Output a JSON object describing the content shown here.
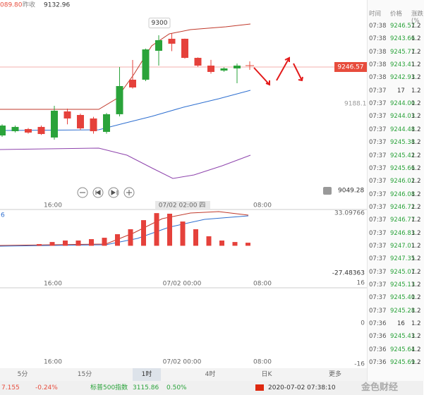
{
  "header": {
    "last_partial": "089.80",
    "prev_close_label": "昨收",
    "prev_close": "9132.96"
  },
  "chart": {
    "high_label": 9300,
    "last_price": 9246.57,
    "mid_price": 9188.19,
    "alert_price": 9049.28,
    "candles": [
      {
        "open": 9137.2,
        "high": 9155,
        "low": 9135,
        "close": 9153.0
      },
      {
        "open": 9144.0,
        "high": 9153,
        "low": 9142,
        "close": 9150.8
      },
      {
        "open": 9147.4,
        "high": 9149,
        "low": 9140,
        "close": 9141.8
      },
      {
        "open": 9150.8,
        "high": 9153,
        "low": 9138,
        "close": 9139.5
      },
      {
        "open": 9133.9,
        "high": 9184.6,
        "low": 9130.5,
        "close": 9176.7
      },
      {
        "open": 9175.6,
        "high": 9180,
        "low": 9155,
        "close": 9164.3
      },
      {
        "open": 9169.9,
        "high": 9172,
        "low": 9146,
        "close": 9148.5
      },
      {
        "open": 9164.3,
        "high": 9167,
        "low": 9140,
        "close": 9144.0
      },
      {
        "open": 9142.9,
        "high": 9173,
        "low": 9140,
        "close": 9171.1
      },
      {
        "open": 9171.1,
        "high": 9246.6,
        "low": 9167.7,
        "close": 9216.1
      },
      {
        "open": 9226.3,
        "high": 9257.8,
        "low": 9212,
        "close": 9213.9
      },
      {
        "open": 9226.3,
        "high": 9276,
        "low": 9224,
        "close": 9274.7
      },
      {
        "open": 9272.5,
        "high": 9297.3,
        "low": 9248.8,
        "close": 9289.4
      },
      {
        "open": 9291.7,
        "high": 9300,
        "low": 9272,
        "close": 9283.8
      },
      {
        "open": 9291.7,
        "high": 9292,
        "low": 9260,
        "close": 9261.2
      },
      {
        "open": 9261.2,
        "high": 9262,
        "low": 9247,
        "close": 9248.8
      },
      {
        "open": 9248.8,
        "high": 9258,
        "low": 9236,
        "close": 9238.7
      },
      {
        "open": 9240.9,
        "high": 9246,
        "low": 9239,
        "close": 9244.3
      },
      {
        "open": 9244.3,
        "high": 9252,
        "low": 9220.6,
        "close": 9248.8
      }
    ],
    "x_labels": [
      "16:00",
      "07/02 02:00 四",
      "08:00"
    ],
    "macd_prefix": "6",
    "macd_top": 33.09766,
    "macd_bottom": -27.48363,
    "macd_values": [
      1.7,
      3.8,
      5.3,
      5.3,
      6.7,
      8.1,
      11.7,
      16.7,
      25.9,
      33.0,
      32.4,
      24.5,
      16.7,
      9.6,
      5.3,
      3.8,
      3.1
    ],
    "macd_x_labels": [
      "16:00",
      "07/02 00:00",
      "08:00"
    ],
    "vol_ticks": [
      "16",
      "0",
      "-16"
    ],
    "vol_x_labels": [
      "16:00",
      "07/02 00:00",
      "08:00"
    ]
  },
  "tabs": [
    "5分",
    "15分",
    "1时",
    "4时",
    "日K",
    "更多"
  ],
  "table": {
    "headers": [
      "时间",
      "价格",
      "涨跌(%"
    ],
    "rows": [
      [
        "07:38",
        "9246.57",
        "1.2"
      ],
      [
        "07:38",
        "9243.66",
        "1.2"
      ],
      [
        "07:38",
        "9245.77",
        "1.2"
      ],
      [
        "07:38",
        "9243.41",
        "1.2"
      ],
      [
        "07:38",
        "9242.93",
        "1.2"
      ],
      [
        "07:37",
        "17",
        "1.2"
      ],
      [
        "07:37",
        "9244.00",
        "1.2"
      ],
      [
        "07:37",
        "9244.03",
        "1.2"
      ],
      [
        "07:37",
        "9244.48",
        "1.2"
      ],
      [
        "07:37",
        "9245.38",
        "1.2"
      ],
      [
        "07:37",
        "9245.42",
        "1.2"
      ],
      [
        "07:37",
        "9245.66",
        "1.2"
      ],
      [
        "07:37",
        "9246.02",
        "1.2"
      ],
      [
        "07:37",
        "9246.08",
        "1.2"
      ],
      [
        "07:37",
        "9246.72",
        "1.2"
      ],
      [
        "07:37",
        "9246.77",
        "1.2"
      ],
      [
        "07:37",
        "9246.83",
        "1.2"
      ],
      [
        "07:37",
        "9247.01",
        "1.2"
      ],
      [
        "07:37",
        "9247.35",
        "1.2"
      ],
      [
        "07:37",
        "9245.07",
        "1.2"
      ],
      [
        "07:37",
        "9245.13",
        "1.2"
      ],
      [
        "07:37",
        "9245.40",
        "1.2"
      ],
      [
        "07:37",
        "9245.28",
        "1.2"
      ],
      [
        "07:36",
        "16",
        "1.2"
      ],
      [
        "07:36",
        "9245.43",
        "1.2"
      ],
      [
        "07:36",
        "9245.64",
        "1.2"
      ],
      [
        "07:36",
        "9245.69",
        "1.2"
      ]
    ]
  },
  "status": {
    "left_value": "7.155",
    "left_change": "-0.24%",
    "index_name": "标普500指数",
    "index_value": "3115.86",
    "index_change": "0.50%",
    "datetime": "2020-07-02 07:38:10",
    "watermark": "金色财经"
  }
}
